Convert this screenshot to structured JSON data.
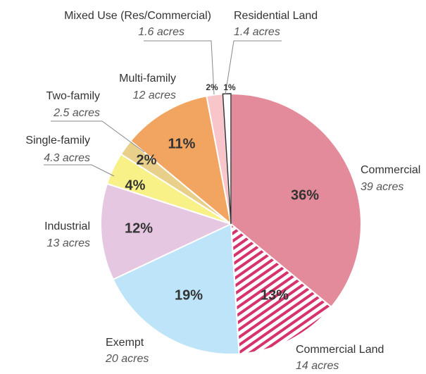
{
  "chart_data": {
    "type": "pie",
    "categories": [
      "Commercial",
      "Commercial Land",
      "Exempt",
      "Industrial",
      "Single-family",
      "Two-family",
      "Multi-family",
      "Mixed Use (Res/Commercial)",
      "Residential Land"
    ],
    "values": [
      36,
      13,
      19,
      12,
      4,
      2,
      11,
      2,
      1
    ],
    "value_labels": [
      "36%",
      "13%",
      "19%",
      "12%",
      "4%",
      "2%",
      "11%",
      "2%",
      "1%"
    ],
    "acre_labels": [
      "39 acres",
      "14 acres",
      "20 acres",
      "13 acres",
      "4.3 acres",
      "2.5 acres",
      "12 acres",
      "1.6 acres",
      "1.4 acres"
    ],
    "colors": [
      "#e48b9b",
      "#d6336c",
      "#bde4f8",
      "#e6c7e2",
      "#f8f187",
      "#e8d08a",
      "#f1a560",
      "#f7c5ca",
      "#ffffff"
    ],
    "hatched": [
      false,
      true,
      false,
      false,
      false,
      false,
      false,
      false,
      false
    ]
  }
}
